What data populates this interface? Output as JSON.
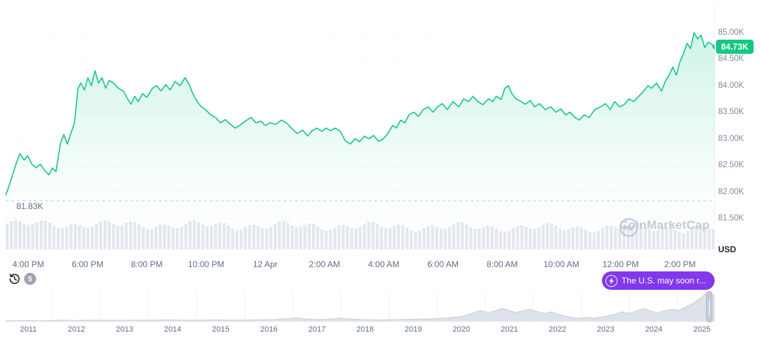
{
  "colors": {
    "green": "#16c784",
    "green_fill": "rgba(22,199,132,0.20)",
    "purple": "#8338ec",
    "axis_text": "#808a9d",
    "grid": "#e7ebf0",
    "dashed_low": "#c8cfdb",
    "volume_bar": "#e5e8ee",
    "mini_fill": "#dde1e9",
    "mini_stroke": "#c9cfdb",
    "mini_grid": "#eff2f5",
    "watermark": "#c3cad6"
  },
  "y_axis": {
    "unit": "USD",
    "current_price_label": "84.73K",
    "current_price_value": 84.73,
    "low_label": "81.83K",
    "low_value": 81.83,
    "ticks": [
      {
        "label": "85.00K",
        "value": 85.0
      },
      {
        "label": "84.50K",
        "value": 84.5
      },
      {
        "label": "84.00K",
        "value": 84.0
      },
      {
        "label": "83.50K",
        "value": 83.5
      },
      {
        "label": "83.00K",
        "value": 83.0
      },
      {
        "label": "82.50K",
        "value": 82.5
      },
      {
        "label": "82.00K",
        "value": 82.0
      },
      {
        "label": "81.50K",
        "value": 81.5
      }
    ]
  },
  "x_axis": {
    "labels": [
      "4:00 PM",
      "6:00 PM",
      "8:00 PM",
      "10:00 PM",
      "12 Apr",
      "2:00 AM",
      "4:00 AM",
      "6:00 AM",
      "8:00 AM",
      "10:00 AM",
      "12:00 PM",
      "2:00 PM"
    ]
  },
  "watermark": {
    "text": "CoinMarketCap"
  },
  "history_button": {
    "count": "5"
  },
  "news_pill": {
    "text": "The U.S. may soon r..."
  },
  "timeline": {
    "years": [
      "2011",
      "2012",
      "2013",
      "2014",
      "2015",
      "2016",
      "2017",
      "2018",
      "2019",
      "2020",
      "2021",
      "2022",
      "2023",
      "2024",
      "2025"
    ]
  },
  "chart_data": [
    {
      "type": "area",
      "title": "Intraday price (thousand USD)",
      "ylabel": "USD",
      "ylim": [
        81.45,
        85.6
      ],
      "current_value": 84.73,
      "period_low": 81.83,
      "x_ticks": [
        "4:00 PM",
        "6:00 PM",
        "8:00 PM",
        "10:00 PM",
        "12 Apr",
        "2:00 AM",
        "4:00 AM",
        "6:00 AM",
        "8:00 AM",
        "10:00 AM",
        "12:00 PM",
        "2:00 PM"
      ],
      "points": [
        [
          0,
          81.93
        ],
        [
          7,
          82.2
        ],
        [
          14,
          82.5
        ],
        [
          20,
          82.72
        ],
        [
          26,
          82.6
        ],
        [
          31,
          82.68
        ],
        [
          37,
          82.52
        ],
        [
          43,
          82.45
        ],
        [
          49,
          82.52
        ],
        [
          55,
          82.4
        ],
        [
          61,
          82.32
        ],
        [
          66,
          82.45
        ],
        [
          71,
          82.38
        ],
        [
          77,
          82.9
        ],
        [
          82,
          83.08
        ],
        [
          87,
          82.9
        ],
        [
          92,
          83.1
        ],
        [
          97,
          83.3
        ],
        [
          102,
          83.95
        ],
        [
          106,
          84.05
        ],
        [
          111,
          83.92
        ],
        [
          116,
          84.15
        ],
        [
          121,
          84.0
        ],
        [
          126,
          84.28
        ],
        [
          131,
          84.05
        ],
        [
          136,
          84.15
        ],
        [
          141,
          83.95
        ],
        [
          146,
          84.1
        ],
        [
          152,
          84.05
        ],
        [
          159,
          83.95
        ],
        [
          166,
          83.9
        ],
        [
          172,
          83.75
        ],
        [
          177,
          83.65
        ],
        [
          182,
          83.8
        ],
        [
          187,
          83.7
        ],
        [
          193,
          83.85
        ],
        [
          199,
          83.78
        ],
        [
          207,
          83.95
        ],
        [
          213,
          84.0
        ],
        [
          219,
          83.9
        ],
        [
          226,
          84.02
        ],
        [
          232,
          83.92
        ],
        [
          239,
          84.08
        ],
        [
          246,
          84.0
        ],
        [
          253,
          84.15
        ],
        [
          259,
          84.02
        ],
        [
          264,
          83.85
        ],
        [
          270,
          83.7
        ],
        [
          276,
          83.6
        ],
        [
          282,
          83.55
        ],
        [
          289,
          83.45
        ],
        [
          296,
          83.4
        ],
        [
          303,
          83.3
        ],
        [
          310,
          83.36
        ],
        [
          317,
          83.27
        ],
        [
          324,
          83.2
        ],
        [
          331,
          83.26
        ],
        [
          339,
          83.34
        ],
        [
          346,
          83.4
        ],
        [
          353,
          83.3
        ],
        [
          360,
          83.33
        ],
        [
          366,
          83.25
        ],
        [
          373,
          83.3
        ],
        [
          381,
          83.27
        ],
        [
          389,
          83.35
        ],
        [
          396,
          83.3
        ],
        [
          403,
          83.2
        ],
        [
          411,
          83.1
        ],
        [
          419,
          83.16
        ],
        [
          426,
          83.05
        ],
        [
          432,
          83.15
        ],
        [
          439,
          83.2
        ],
        [
          446,
          83.14
        ],
        [
          452,
          83.2
        ],
        [
          458,
          83.15
        ],
        [
          465,
          83.2
        ],
        [
          472,
          83.14
        ],
        [
          479,
          82.96
        ],
        [
          486,
          82.9
        ],
        [
          493,
          83.0
        ],
        [
          499,
          82.94
        ],
        [
          506,
          83.05
        ],
        [
          512,
          83.0
        ],
        [
          519,
          83.06
        ],
        [
          526,
          82.95
        ],
        [
          532,
          82.99
        ],
        [
          539,
          83.1
        ],
        [
          546,
          83.25
        ],
        [
          551,
          83.2
        ],
        [
          557,
          83.35
        ],
        [
          563,
          83.3
        ],
        [
          569,
          83.45
        ],
        [
          576,
          83.5
        ],
        [
          582,
          83.42
        ],
        [
          589,
          83.55
        ],
        [
          596,
          83.6
        ],
        [
          603,
          83.5
        ],
        [
          609,
          83.6
        ],
        [
          616,
          83.66
        ],
        [
          623,
          83.55
        ],
        [
          631,
          83.7
        ],
        [
          639,
          83.6
        ],
        [
          646,
          83.75
        ],
        [
          653,
          83.7
        ],
        [
          659,
          83.8
        ],
        [
          666,
          83.7
        ],
        [
          673,
          83.64
        ],
        [
          681,
          83.75
        ],
        [
          687,
          83.7
        ],
        [
          692,
          83.8
        ],
        [
          699,
          83.74
        ],
        [
          704,
          83.95
        ],
        [
          709,
          84.0
        ],
        [
          714,
          83.85
        ],
        [
          720,
          83.75
        ],
        [
          727,
          83.7
        ],
        [
          733,
          83.65
        ],
        [
          740,
          83.72
        ],
        [
          746,
          83.6
        ],
        [
          753,
          83.66
        ],
        [
          761,
          83.55
        ],
        [
          769,
          83.6
        ],
        [
          776,
          83.5
        ],
        [
          783,
          83.56
        ],
        [
          790,
          83.45
        ],
        [
          796,
          83.5
        ],
        [
          803,
          83.4
        ],
        [
          809,
          83.35
        ],
        [
          816,
          83.45
        ],
        [
          823,
          83.4
        ],
        [
          831,
          83.55
        ],
        [
          839,
          83.6
        ],
        [
          846,
          83.66
        ],
        [
          853,
          83.55
        ],
        [
          859,
          83.7
        ],
        [
          866,
          83.6
        ],
        [
          873,
          83.65
        ],
        [
          879,
          83.75
        ],
        [
          886,
          83.7
        ],
        [
          893,
          83.8
        ],
        [
          900,
          83.9
        ],
        [
          906,
          84.0
        ],
        [
          911,
          83.95
        ],
        [
          918,
          84.05
        ],
        [
          925,
          83.9
        ],
        [
          931,
          84.1
        ],
        [
          936,
          84.2
        ],
        [
          941,
          84.35
        ],
        [
          946,
          84.2
        ],
        [
          951,
          84.45
        ],
        [
          956,
          84.6
        ],
        [
          961,
          84.8
        ],
        [
          966,
          84.7
        ],
        [
          971,
          85.0
        ],
        [
          976,
          84.88
        ],
        [
          981,
          84.95
        ],
        [
          986,
          84.72
        ],
        [
          991,
          84.82
        ],
        [
          996,
          84.78
        ],
        [
          1000,
          84.73
        ]
      ]
    },
    {
      "type": "area",
      "title": "All-time range navigator",
      "x_ticks": [
        "2011",
        "2012",
        "2013",
        "2014",
        "2015",
        "2016",
        "2017",
        "2018",
        "2019",
        "2020",
        "2021",
        "2022",
        "2023",
        "2024",
        "2025"
      ],
      "points_norm": [
        [
          0,
          0.03
        ],
        [
          25,
          0.04
        ],
        [
          50,
          0.03
        ],
        [
          75,
          0.05
        ],
        [
          100,
          0.04
        ],
        [
          125,
          0.05
        ],
        [
          150,
          0.04
        ],
        [
          175,
          0.05
        ],
        [
          200,
          0.05
        ],
        [
          225,
          0.06
        ],
        [
          250,
          0.05
        ],
        [
          275,
          0.05
        ],
        [
          300,
          0.06
        ],
        [
          325,
          0.05
        ],
        [
          350,
          0.06
        ],
        [
          375,
          0.07
        ],
        [
          395,
          0.1
        ],
        [
          410,
          0.13
        ],
        [
          425,
          0.09
        ],
        [
          440,
          0.07
        ],
        [
          458,
          0.09
        ],
        [
          472,
          0.12
        ],
        [
          488,
          0.09
        ],
        [
          505,
          0.07
        ],
        [
          525,
          0.06
        ],
        [
          545,
          0.07
        ],
        [
          565,
          0.08
        ],
        [
          585,
          0.09
        ],
        [
          605,
          0.1
        ],
        [
          625,
          0.13
        ],
        [
          645,
          0.18
        ],
        [
          660,
          0.3
        ],
        [
          670,
          0.38
        ],
        [
          680,
          0.3
        ],
        [
          690,
          0.36
        ],
        [
          700,
          0.45
        ],
        [
          710,
          0.38
        ],
        [
          720,
          0.31
        ],
        [
          730,
          0.37
        ],
        [
          740,
          0.42
        ],
        [
          750,
          0.34
        ],
        [
          760,
          0.28
        ],
        [
          770,
          0.33
        ],
        [
          780,
          0.25
        ],
        [
          790,
          0.18
        ],
        [
          800,
          0.14
        ],
        [
          810,
          0.12
        ],
        [
          820,
          0.15
        ],
        [
          830,
          0.12
        ],
        [
          840,
          0.16
        ],
        [
          850,
          0.2
        ],
        [
          860,
          0.26
        ],
        [
          870,
          0.33
        ],
        [
          880,
          0.28
        ],
        [
          890,
          0.36
        ],
        [
          900,
          0.44
        ],
        [
          910,
          0.36
        ],
        [
          920,
          0.3
        ],
        [
          930,
          0.37
        ],
        [
          940,
          0.42
        ],
        [
          950,
          0.38
        ],
        [
          960,
          0.5
        ],
        [
          970,
          0.62
        ],
        [
          980,
          0.8
        ],
        [
          988,
          0.95
        ],
        [
          994,
          0.82
        ],
        [
          1000,
          0.9
        ]
      ]
    }
  ]
}
